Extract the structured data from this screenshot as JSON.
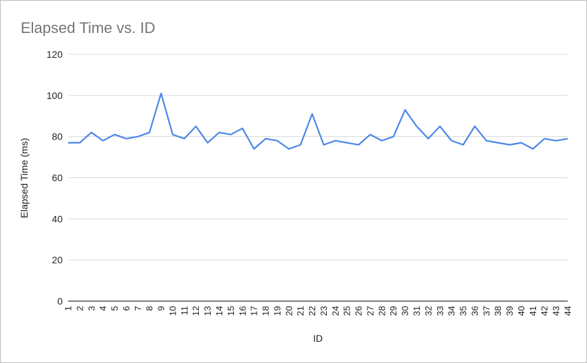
{
  "chart_data": {
    "type": "line",
    "title": "Elapsed Time vs. ID",
    "xlabel": "ID",
    "ylabel": "Elapsed Time (ms)",
    "ylim": [
      0,
      120
    ],
    "yticks": [
      0,
      20,
      40,
      60,
      80,
      100,
      120
    ],
    "grid": true,
    "legend": "none",
    "x": [
      1,
      2,
      3,
      4,
      5,
      6,
      7,
      8,
      9,
      10,
      11,
      12,
      13,
      14,
      15,
      16,
      17,
      18,
      19,
      20,
      21,
      22,
      23,
      24,
      25,
      26,
      27,
      28,
      29,
      30,
      31,
      32,
      33,
      34,
      35,
      36,
      37,
      38,
      39,
      40,
      41,
      42,
      43,
      44
    ],
    "series": [
      {
        "color": "#4a86e8",
        "values": [
          77,
          77,
          82,
          78,
          81,
          79,
          80,
          82,
          101,
          81,
          79,
          85,
          77,
          82,
          81,
          84,
          74,
          79,
          78,
          74,
          76,
          91,
          76,
          78,
          77,
          76,
          81,
          78,
          80,
          93,
          85,
          79,
          85,
          78,
          76,
          85,
          78,
          77,
          76,
          77,
          74,
          79,
          78,
          79
        ]
      }
    ]
  }
}
